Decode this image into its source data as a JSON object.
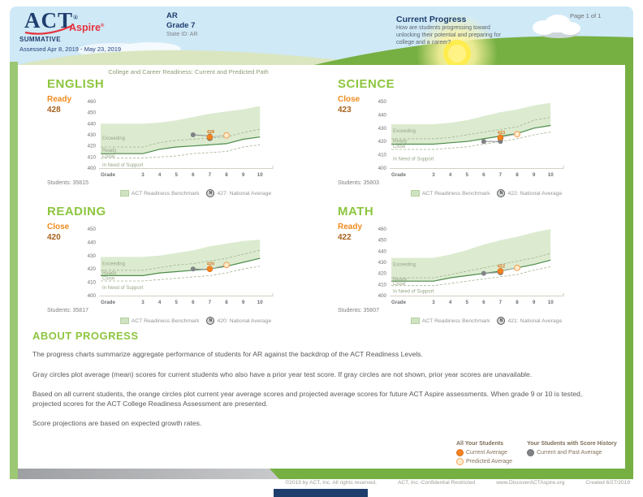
{
  "header": {
    "logo_act": "ACT",
    "logo_act_reg": "®",
    "logo_aspire": "Aspire",
    "logo_aspire_reg": "®",
    "program": "SUMMATIVE",
    "assessed": "Assessed Apr 8, 2019 - May 23, 2019",
    "org_name": "AR",
    "grade": "Grade 7",
    "state_id": "State ID: AR",
    "report_title": "Current Progress",
    "report_desc": "How are students progressing toward\nunlocking their potential and preparing for\ncollege and a career?",
    "page_num": "Page 1 of 1"
  },
  "charts_title": "College and Career Readiness: Current and Predicted Path",
  "shared": {
    "x_axis_label": "Grade",
    "zones": [
      "Exceeding",
      "Ready",
      "Close",
      "In Need of Support"
    ],
    "benchmark_legend": "ACT Readiness Benchmark",
    "national_icon": "N",
    "colors": {
      "subject_green": "#8dc63f",
      "level_orange": "#f08b1e",
      "score_brown": "#a9621c",
      "band_fill": "#dcebd0",
      "benchmark_line": "#4c8c4a",
      "boundary_dashed": "#a3b391",
      "current_marker": "#f58220",
      "predicted_marker_fill": "#feeccd",
      "history_marker": "#808285"
    }
  },
  "chart_data": [
    {
      "type": "line",
      "subject": "ENGLISH",
      "level": "Ready",
      "score": "428",
      "students_label": "Students: 35815",
      "national_average": 427,
      "national_legend": "427: National Average",
      "point_label": "428",
      "x_grades": [
        3,
        4,
        5,
        6,
        7,
        8,
        9,
        10
      ],
      "ylim": [
        400,
        460
      ],
      "band_top": [
        440,
        441,
        443,
        446,
        449,
        451,
        453,
        456
      ],
      "exceeding_boundary": [
        419,
        423,
        425,
        426,
        427,
        428,
        432,
        435
      ],
      "benchmark": [
        413,
        417,
        419,
        420,
        421,
        422,
        426,
        428
      ],
      "close_boundary": [
        409,
        410,
        411,
        413,
        414,
        415,
        419,
        421
      ],
      "gray_points": {
        "6": 430,
        "7": 429
      },
      "orange_current": {
        "grade": 7,
        "value": 428
      },
      "orange_predicted": {
        "grade": 8,
        "value": 429.5
      },
      "zone_label_y": {
        "exceeding": 427,
        "ready": 416,
        "close": 411,
        "support": 403
      }
    },
    {
      "type": "line",
      "subject": "SCIENCE",
      "level": "Close",
      "score": "423",
      "students_label": "Students: 35803",
      "national_average": 422,
      "national_legend": "422: National Average",
      "point_label": "423",
      "x_grades": [
        3,
        4,
        5,
        6,
        7,
        8,
        9,
        10
      ],
      "ylim": [
        400,
        450
      ],
      "band_top": [
        433,
        434,
        436,
        439,
        442,
        444,
        447,
        449
      ],
      "exceeding_boundary": [
        422,
        423,
        425,
        427,
        429,
        431,
        436,
        438
      ],
      "benchmark": [
        418,
        419,
        420,
        422,
        424,
        426,
        430,
        432
      ],
      "close_boundary": [
        414,
        415,
        416,
        418,
        420,
        422,
        425,
        427
      ],
      "gray_points": {
        "6": 420,
        "7": 420
      },
      "orange_current": {
        "grade": 7,
        "value": 423
      },
      "orange_predicted": {
        "grade": 8,
        "value": 425.5
      },
      "zone_label_y": {
        "exceeding": 428,
        "ready": 420.5,
        "close": 416.5,
        "support": 407
      }
    },
    {
      "type": "line",
      "subject": "READING",
      "level": "Close",
      "score": "420",
      "students_label": "Students: 35817",
      "national_average": 420,
      "national_legend": "420: National Average",
      "point_label": "420",
      "x_grades": [
        3,
        4,
        5,
        6,
        7,
        8,
        9,
        10
      ],
      "ylim": [
        400,
        450
      ],
      "band_top": [
        429,
        430,
        432,
        434,
        437,
        439,
        441,
        442
      ],
      "exceeding_boundary": [
        419,
        421,
        423,
        424,
        426,
        428,
        431,
        434
      ],
      "benchmark": [
        415,
        417,
        418,
        419,
        420,
        422,
        425,
        428
      ],
      "close_boundary": [
        411,
        412,
        413,
        414,
        415,
        417,
        420,
        422
      ],
      "gray_points": {
        "6": 420,
        "7": 419.5
      },
      "orange_current": {
        "grade": 7,
        "value": 420
      },
      "orange_predicted": {
        "grade": 8,
        "value": 423
      },
      "zone_label_y": {
        "exceeding": 424,
        "ready": 417,
        "close": 413,
        "support": 406
      }
    },
    {
      "type": "line",
      "subject": "MATH",
      "level": "Ready",
      "score": "422",
      "students_label": "Students: 35807",
      "national_average": 421,
      "national_legend": "421: National Average",
      "point_label": "422",
      "x_grades": [
        3,
        4,
        5,
        6,
        7,
        8,
        9,
        10
      ],
      "ylim": [
        400,
        460
      ],
      "band_top": [
        434,
        437,
        441,
        446,
        450,
        453,
        457,
        460
      ],
      "exceeding_boundary": [
        416,
        419,
        422,
        425,
        428,
        431,
        434,
        438
      ],
      "benchmark": [
        413,
        416,
        418,
        420,
        422,
        425,
        428,
        432
      ],
      "close_boundary": [
        409,
        411,
        413,
        415,
        417,
        419,
        423,
        426
      ],
      "gray_points": {
        "6": 420,
        "7": 421
      },
      "orange_current": {
        "grade": 7,
        "value": 422
      },
      "orange_predicted": {
        "grade": 8,
        "value": 425
      },
      "zone_label_y": {
        "exceeding": 428,
        "ready": 414.5,
        "close": 411,
        "support": 404
      }
    }
  ],
  "about": {
    "heading": "ABOUT PROGRESS",
    "p1": "The progress charts summarize aggregate performance of students for AR against the backdrop of the ACT Readiness Levels.",
    "p2": "Gray circles plot average (mean) scores for current students who also have a prior year test score. If gray circles are not shown, prior year scores are unavailable.",
    "p3": "Based on all current students, the orange circles plot current year average scores and projected average scores for future ACT Aspire assessments. When grade 9 or 10 is tested, projected scores for the ACT College Readiness Assessment are presented.",
    "p4": "Score projections are based on expected growth rates."
  },
  "legend": {
    "all_title": "All Your Students",
    "current_label": "Current Average",
    "predicted_label": "Predicted Average",
    "history_title": "Your Students with Score History",
    "history_label": "Current and Past Average"
  },
  "footer": {
    "copyright": "©2019 by ACT, Inc. All rights reserved.",
    "confidential": "ACT, Inc.-Confidential Restricted",
    "site": "www.DiscoverACTAspire.org",
    "created": "Created 6/27/2019"
  }
}
